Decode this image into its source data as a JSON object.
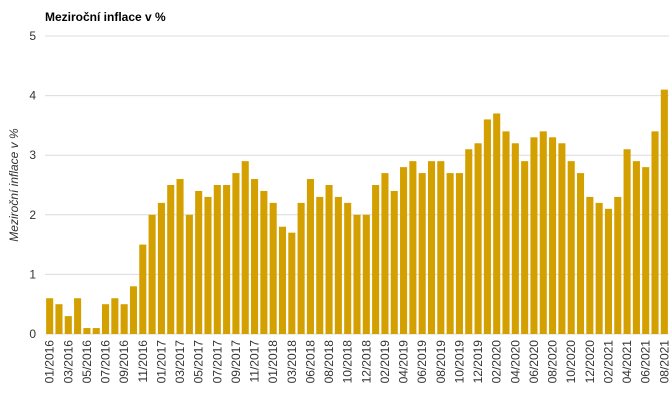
{
  "chart_data": {
    "type": "bar",
    "title": "Meziroční inflace v %",
    "y_label": "Meziroční inflace v %",
    "categories": [
      "01/2016",
      null,
      "03/2016",
      null,
      "05/2016",
      null,
      "07/2016",
      null,
      "09/2016",
      null,
      "11/2016",
      null,
      "01/2017",
      null,
      "03/2017",
      null,
      "05/2017",
      null,
      "07/2017",
      null,
      "09/2017",
      null,
      "11/2017",
      null,
      "01/2018",
      null,
      "03/2018",
      null,
      "06/2018",
      null,
      "08/2018",
      null,
      "10/2018",
      null,
      "12/2018",
      null,
      "02/2019",
      null,
      "04/2019",
      null,
      "06/2019",
      null,
      "08/2019",
      null,
      "10/2019",
      null,
      "12/2019",
      null,
      "02/2020",
      null,
      "04/2020",
      null,
      "06/2020",
      null,
      "08/2020",
      null,
      "10/2020",
      null,
      "12/2020",
      null,
      "02/2021",
      null,
      "04/2021",
      null,
      "06/2021",
      null,
      "08/2021"
    ],
    "values": [
      0.6,
      0.5,
      0.3,
      0.6,
      0.1,
      0.1,
      0.5,
      0.6,
      0.5,
      0.8,
      1.5,
      2.0,
      2.2,
      2.5,
      2.6,
      2.0,
      2.4,
      2.3,
      2.5,
      2.5,
      2.7,
      2.9,
      2.6,
      2.4,
      2.2,
      1.8,
      1.7,
      2.2,
      2.6,
      2.3,
      2.5,
      2.3,
      2.2,
      2.0,
      2.0,
      2.5,
      2.7,
      2.4,
      2.8,
      2.9,
      2.7,
      2.9,
      2.9,
      2.7,
      2.7,
      3.1,
      3.2,
      3.6,
      3.7,
      3.4,
      3.2,
      2.9,
      3.3,
      3.4,
      3.3,
      3.2,
      2.9,
      2.7,
      2.3,
      2.2,
      2.1,
      2.3,
      3.1,
      2.9,
      2.8,
      3.4,
      4.1
    ],
    "color": "#d4a000",
    "ylim": [
      0,
      5
    ],
    "yticks": [
      0,
      1,
      2,
      3,
      4,
      5
    ],
    "grid": true
  }
}
